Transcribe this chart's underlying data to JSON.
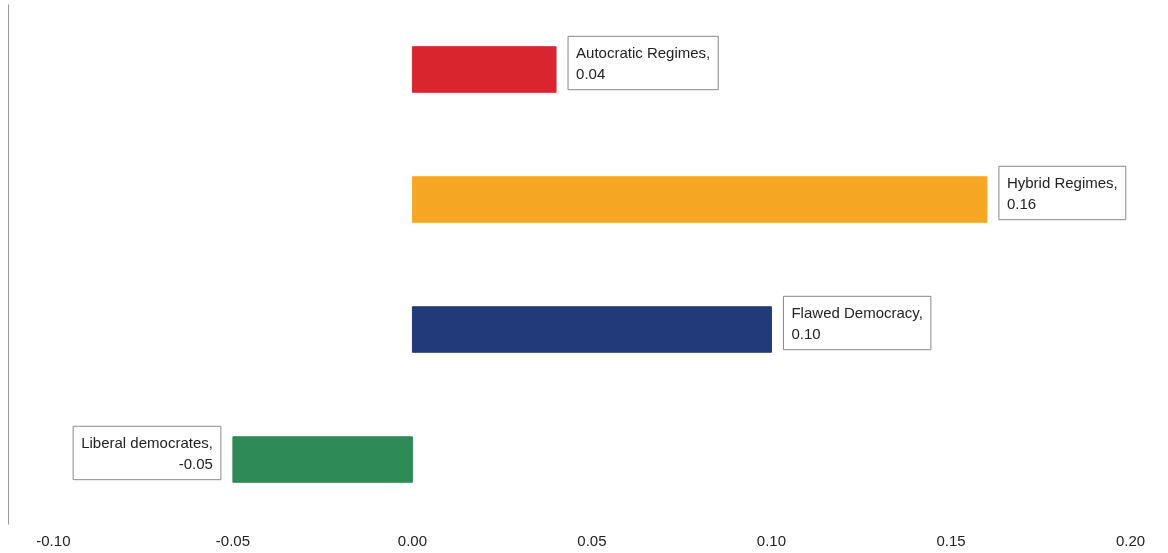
{
  "chart_data": {
    "type": "bar",
    "orientation": "horizontal",
    "categories": [
      null,
      null,
      null,
      null
    ],
    "values": [
      0.04,
      0.16,
      0.1,
      -0.05
    ],
    "colors": [
      "#d9262e",
      "#f5a623",
      "#233a7a",
      "#2e8b57"
    ],
    "value_labels": [
      "Autocratic Regimes, 0.04",
      "Hybrid Regimes, 0.16",
      "Flawed Democracy, 0.10",
      "Liberal democrates, -0.05"
    ],
    "xlim": [
      -0.1125,
      0.2
    ],
    "xticks": [
      {
        "value": -0.1,
        "label": "-0.10"
      },
      {
        "value": -0.05,
        "label": "-0.05"
      },
      {
        "value": 0,
        "label": "0.00"
      },
      {
        "value": 0.05,
        "label": "0.05"
      },
      {
        "value": 0.1,
        "label": "0.10"
      },
      {
        "value": 0.15,
        "label": "0.15"
      },
      {
        "value": 0.2,
        "label": "0.20"
      }
    ],
    "grid": false
  }
}
